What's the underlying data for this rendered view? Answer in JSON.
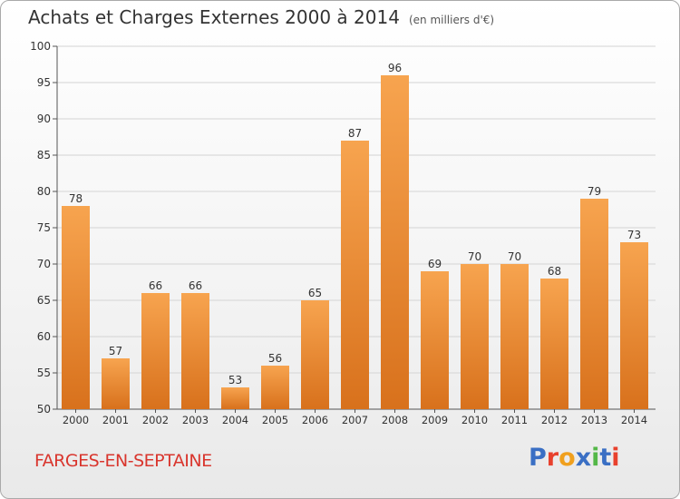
{
  "title": "Achats et Charges Externes 2000 à 2014",
  "subtitle": "(en milliers d'€)",
  "commune": "FARGES-EN-SEPTAINE",
  "brand": {
    "text": "Proxiti",
    "letter_colors": [
      "#3a6fc4",
      "#e8412d",
      "#f0a01e",
      "#3a6fc4",
      "#54b848",
      "#3a6fc4",
      "#e8412d"
    ]
  },
  "colors": {
    "bar_top": "#f7a44f",
    "bar_bottom": "#d8711c",
    "commune": "#d9362e"
  },
  "chart_data": {
    "type": "bar",
    "title": "Achats et Charges Externes 2000 à 2014",
    "categories": [
      "2000",
      "2001",
      "2002",
      "2003",
      "2004",
      "2005",
      "2006",
      "2007",
      "2008",
      "2009",
      "2010",
      "2011",
      "2012",
      "2013",
      "2014"
    ],
    "values": [
      78,
      57,
      66,
      66,
      53,
      56,
      65,
      87,
      96,
      69,
      70,
      70,
      68,
      79,
      73
    ],
    "ylim": [
      50,
      100
    ],
    "yticks": [
      50,
      55,
      60,
      65,
      70,
      75,
      80,
      85,
      90,
      95,
      100
    ],
    "grid": true,
    "xlabel": "",
    "ylabel": ""
  }
}
